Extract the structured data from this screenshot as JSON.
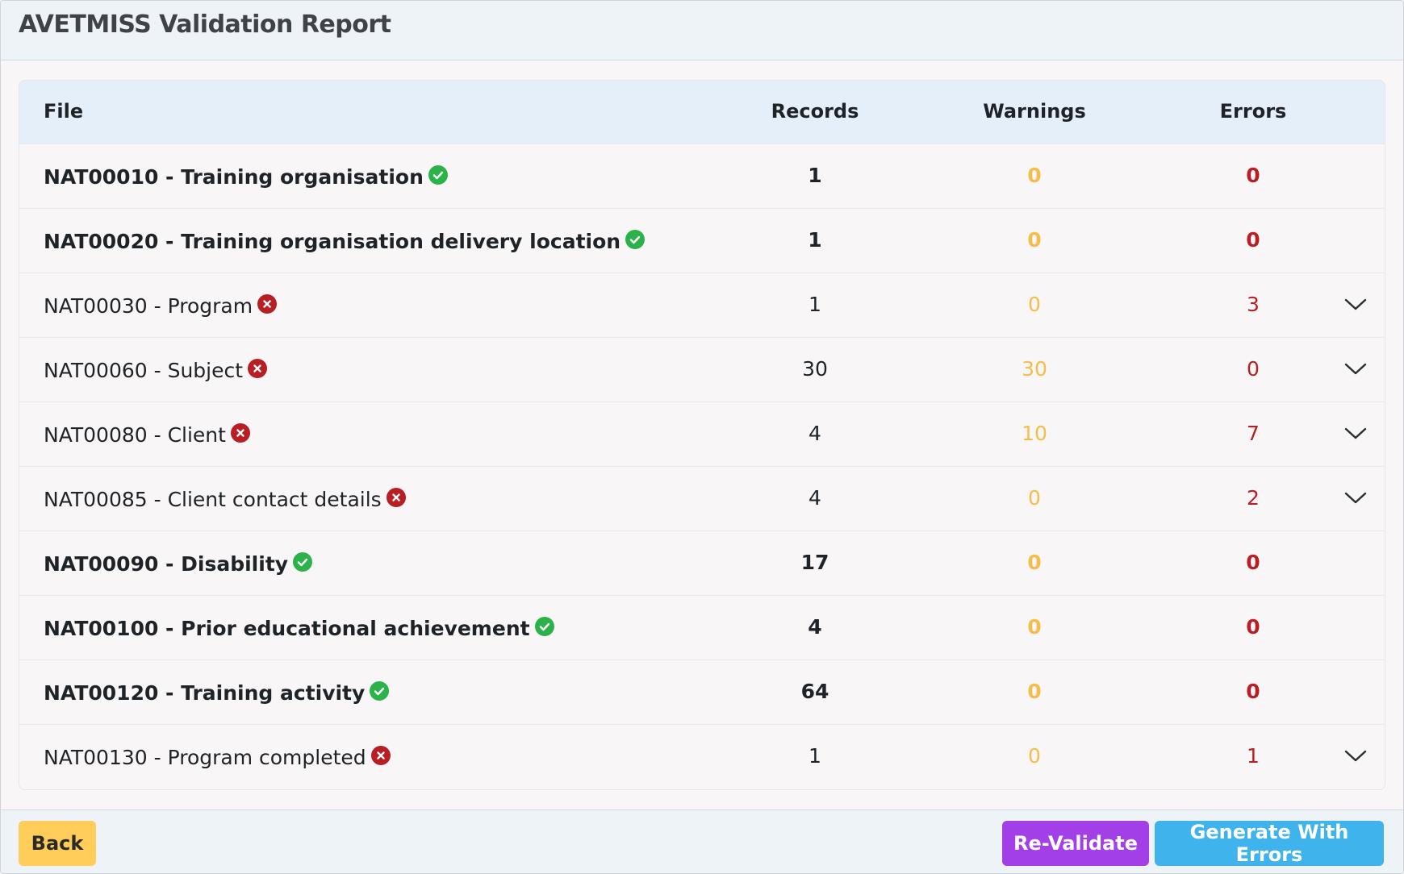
{
  "header": {
    "title": "AVETMISS Validation Report"
  },
  "table": {
    "columns": {
      "file": "File",
      "records": "Records",
      "warnings": "Warnings",
      "errors": "Errors"
    },
    "rows": [
      {
        "file": "NAT00010 - Training organisation",
        "status": "valid",
        "records": "1",
        "warnings": "0",
        "errors": "0",
        "expandable": false
      },
      {
        "file": "NAT00020 - Training organisation delivery location",
        "status": "valid",
        "records": "1",
        "warnings": "0",
        "errors": "0",
        "expandable": false
      },
      {
        "file": "NAT00030 - Program",
        "status": "invalid",
        "records": "1",
        "warnings": "0",
        "errors": "3",
        "expandable": true
      },
      {
        "file": "NAT00060 - Subject",
        "status": "invalid",
        "records": "30",
        "warnings": "30",
        "errors": "0",
        "expandable": true
      },
      {
        "file": "NAT00080 - Client",
        "status": "invalid",
        "records": "4",
        "warnings": "10",
        "errors": "7",
        "expandable": true
      },
      {
        "file": "NAT00085 - Client contact details",
        "status": "invalid",
        "records": "4",
        "warnings": "0",
        "errors": "2",
        "expandable": true
      },
      {
        "file": "NAT00090 - Disability",
        "status": "valid",
        "records": "17",
        "warnings": "0",
        "errors": "0",
        "expandable": false
      },
      {
        "file": "NAT00100 - Prior educational achievement",
        "status": "valid",
        "records": "4",
        "warnings": "0",
        "errors": "0",
        "expandable": false
      },
      {
        "file": "NAT00120 - Training activity",
        "status": "valid",
        "records": "64",
        "warnings": "0",
        "errors": "0",
        "expandable": false
      },
      {
        "file": "NAT00130 - Program completed",
        "status": "invalid",
        "records": "1",
        "warnings": "0",
        "errors": "1",
        "expandable": true
      }
    ]
  },
  "footer": {
    "back_label": "Back",
    "revalidate_label": "Re-Validate",
    "generate_label": "Generate With Errors"
  },
  "icons": {
    "valid": "check-circle-icon",
    "invalid": "x-circle-icon",
    "expand": "chevron-down-icon"
  },
  "colors": {
    "valid": "#2bb34a",
    "invalid": "#b71f24",
    "warning_text": "#f5bd4a",
    "error_text": "#b71f24",
    "back_button": "#ffcd5a",
    "revalidate_button": "#a23fe6",
    "generate_button": "#3fb3ec"
  }
}
